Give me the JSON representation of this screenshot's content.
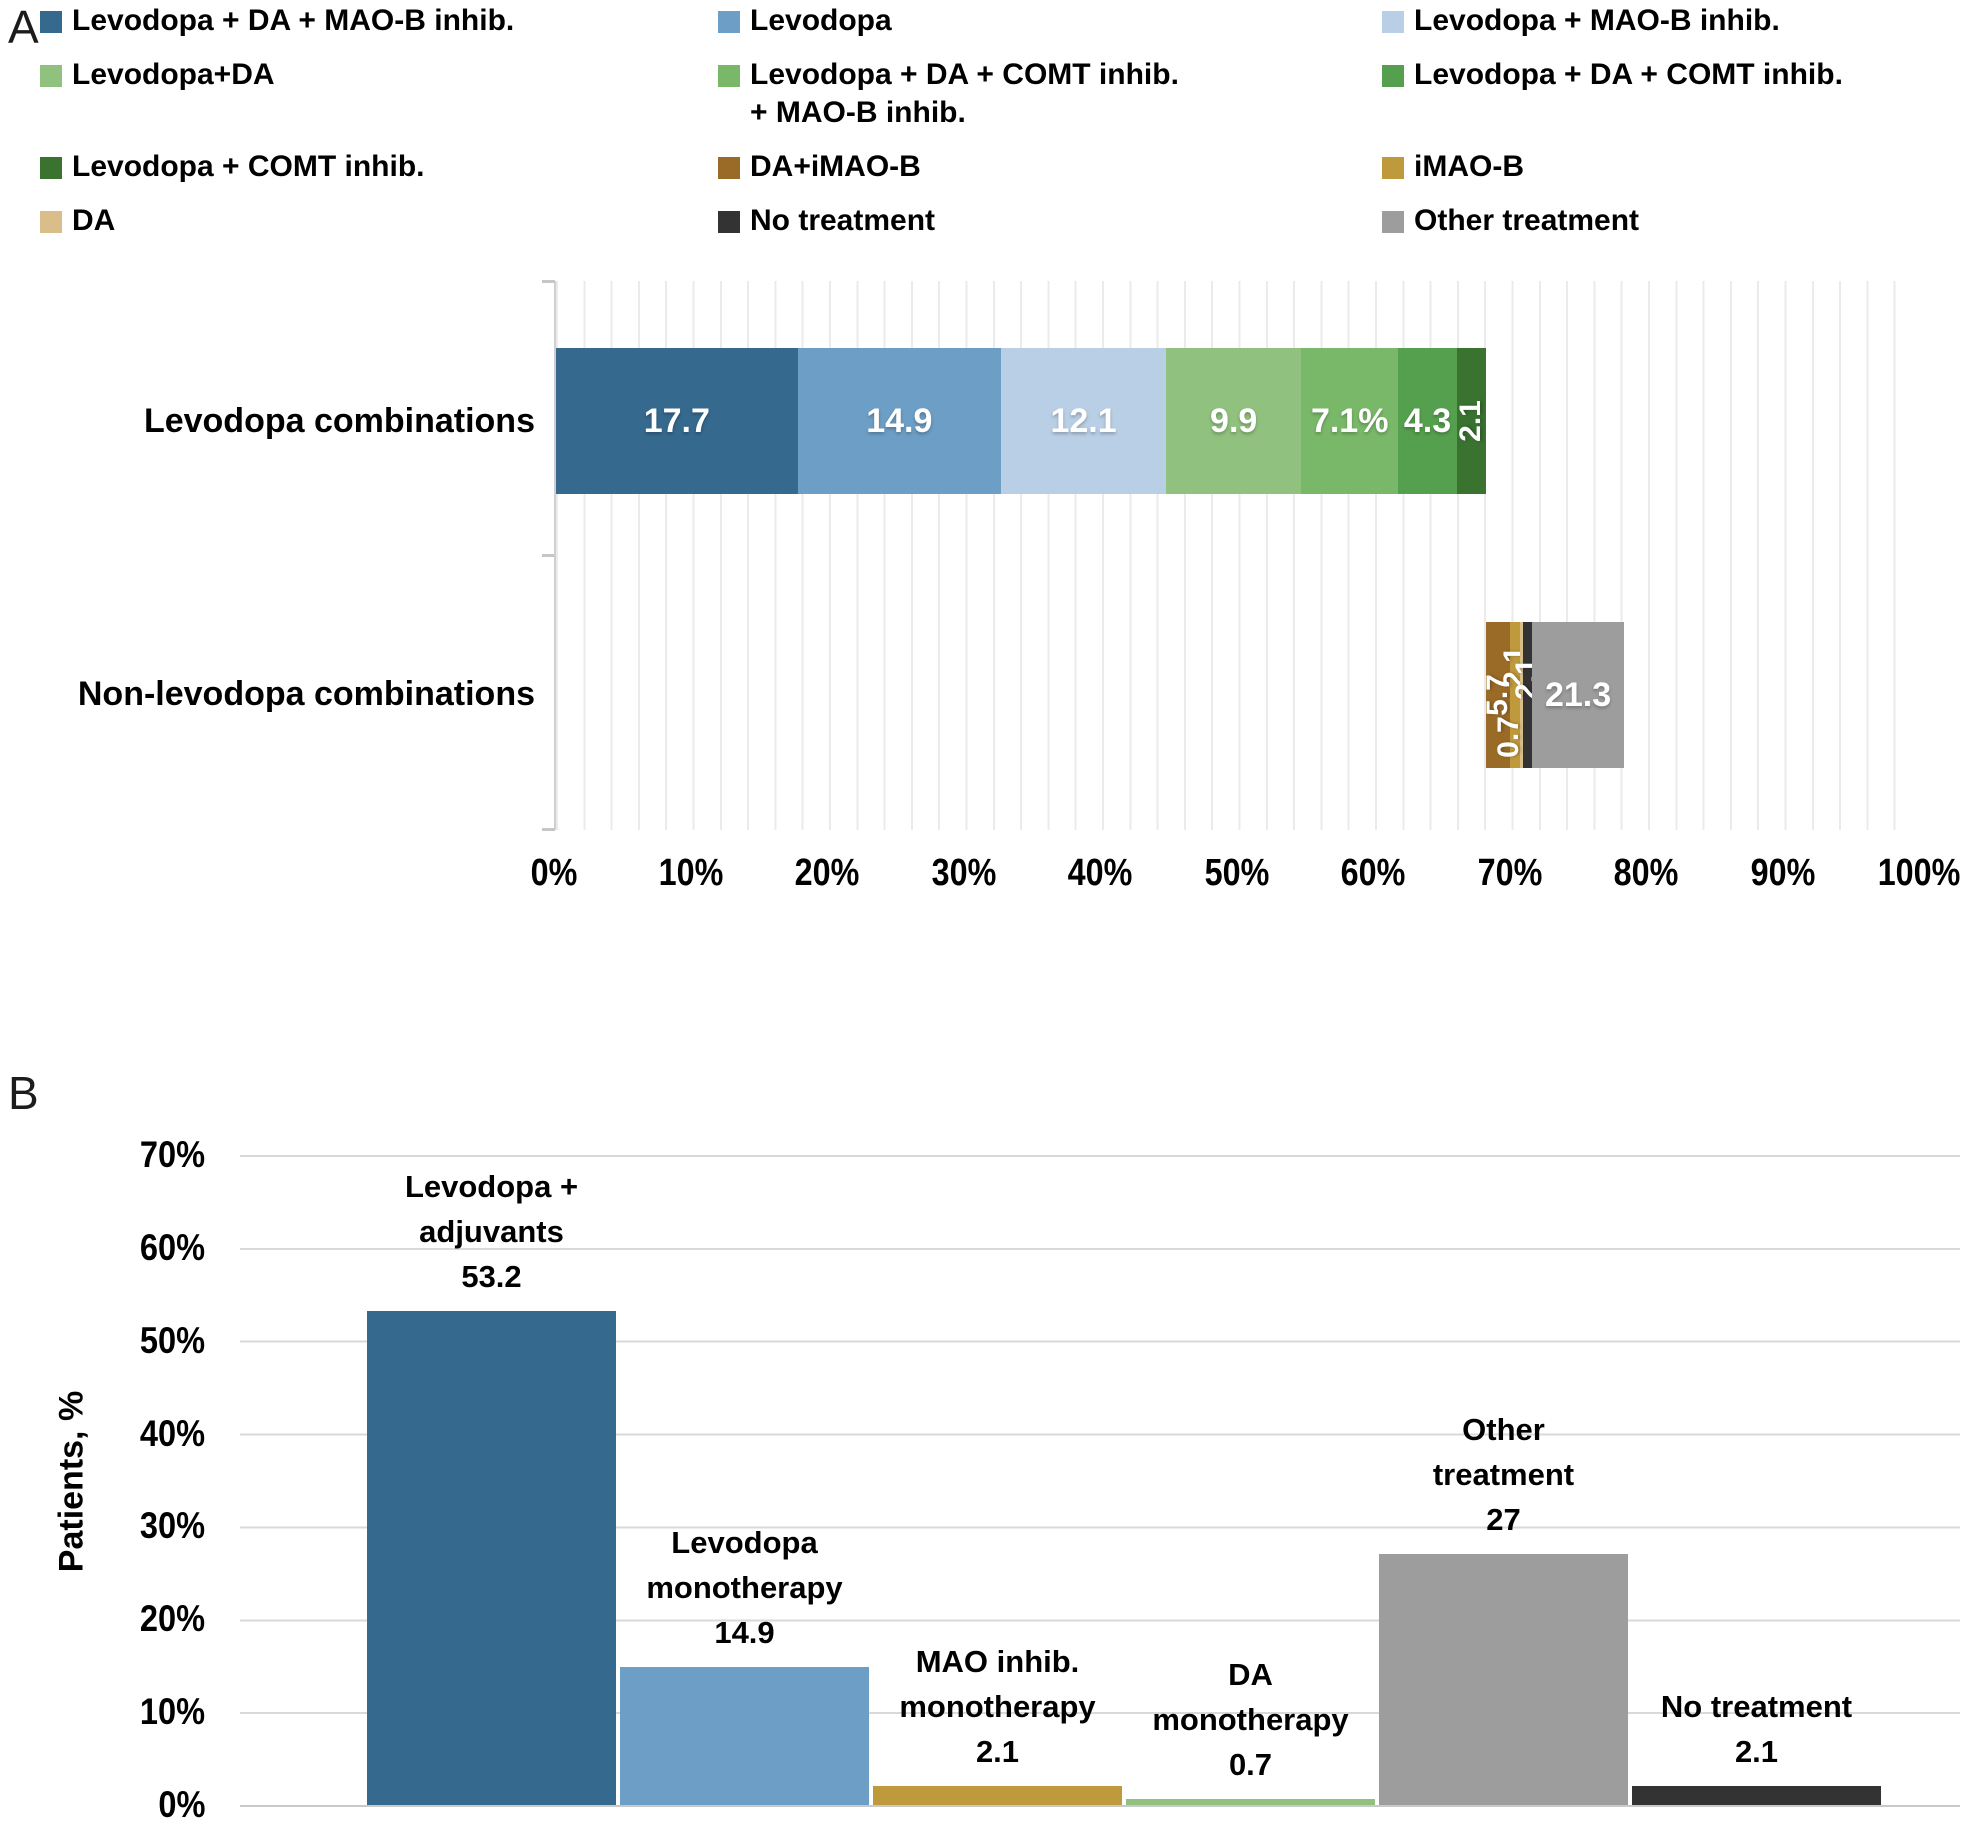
{
  "panel_a": {
    "letter": "A",
    "legend": [
      {
        "label": "Levodopa + DA + MAO-B inhib.",
        "color": "#35698E"
      },
      {
        "label": "Levodopa",
        "color": "#6D9EC5"
      },
      {
        "label": "Levodopa + MAO-B inhib.",
        "color": "#B9CFE5"
      },
      {
        "label": "Levodopa+DA",
        "color": "#90C17E"
      },
      {
        "label": "Levodopa + DA + COMT inhib.\n+ MAO-B inhib.",
        "color": "#7AB869"
      },
      {
        "label": "Levodopa + DA + COMT inhib.",
        "color": "#55A04E"
      },
      {
        "label": "Levodopa + COMT inhib.",
        "color": "#3A7230"
      },
      {
        "label": "DA+iMAO-B",
        "color": "#9A6B27"
      },
      {
        "label": "iMAO-B",
        "color": "#BF9A3D"
      },
      {
        "label": "DA",
        "color": "#D9BE8A"
      },
      {
        "label": "No treatment",
        "color": "#333333"
      },
      {
        "label": "Other treatment",
        "color": "#9D9D9D"
      }
    ]
  },
  "panel_b": {
    "letter": "B",
    "ylabel": "Patients, %"
  },
  "chart_data": [
    {
      "type": "bar",
      "orientation": "horizontal",
      "stacked": true,
      "legend_position": "top",
      "grid": "vertical minor gridlines every 2%",
      "xlim": [
        0,
        100
      ],
      "x_ticks": [
        "0%",
        "10%",
        "20%",
        "30%",
        "40%",
        "50%",
        "60%",
        "70%",
        "80%",
        "90%",
        "100%"
      ],
      "categories": [
        "Levodopa combinations",
        "Non-levodopa combinations"
      ],
      "rows": [
        {
          "category": "Levodopa combinations",
          "offset": 0,
          "segments": [
            {
              "series": "Levodopa + DA + MAO-B inhib.",
              "value": 17.7,
              "label": "17.7",
              "color": "#35698E",
              "rotated": false
            },
            {
              "series": "Levodopa",
              "value": 14.9,
              "label": "14.9",
              "color": "#6D9EC5",
              "rotated": false
            },
            {
              "series": "Levodopa + MAO-B inhib.",
              "value": 12.1,
              "label": "12.1",
              "color": "#B9CFE5",
              "rotated": false
            },
            {
              "series": "Levodopa+DA",
              "value": 9.9,
              "label": "9.9",
              "color": "#90C17E",
              "rotated": false
            },
            {
              "series": "Levodopa + DA + COMT inhib. + MAO-B inhib.",
              "value": 7.1,
              "label": "7.1%",
              "color": "#7AB869",
              "rotated": false
            },
            {
              "series": "Levodopa + DA + COMT inhib.",
              "value": 4.3,
              "label": "4.3",
              "color": "#55A04E",
              "rotated": false
            },
            {
              "series": "Levodopa + COMT inhib.",
              "value": 2.1,
              "label": "2.1",
              "color": "#3A7230",
              "rotated": true
            }
          ]
        },
        {
          "category": "Non-levodopa combinations",
          "offset": 68.1,
          "segments": [
            {
              "series": "DA+iMAO-B",
              "value": 5.7,
              "label": "5.7",
              "color": "#9A6B27",
              "rotated": true
            },
            {
              "series": "iMAO-B",
              "value": 2.1,
              "label": "2.1",
              "color": "#BF9A3D",
              "rotated": true
            },
            {
              "series": "DA",
              "value": 0.7,
              "label": "0.7",
              "color": "#D9BE8A",
              "rotated": true
            },
            {
              "series": "No treatment",
              "value": 2.1,
              "label": "2.1",
              "color": "#333333",
              "rotated": true
            },
            {
              "series": "Other treatment",
              "value": 21.3,
              "label": "21.3",
              "color": "#9D9D9D",
              "rotated": false
            }
          ]
        }
      ]
    },
    {
      "type": "bar",
      "orientation": "vertical",
      "ylabel": "Patients, %",
      "ylim": [
        0,
        70
      ],
      "y_ticks": [
        "70%",
        "60%",
        "50%",
        "40%",
        "30%",
        "20%",
        "10%",
        "0%"
      ],
      "grid": "horizontal gridlines every 10%",
      "bars": [
        {
          "label": "Levodopa +\nadjuvants",
          "value": 53.2,
          "value_label": "53.2",
          "color": "#35698E"
        },
        {
          "label": "Levodopa\nmonotherapy",
          "value": 14.9,
          "value_label": "14.9",
          "color": "#6D9EC5"
        },
        {
          "label": "MAO inhib.\nmonotherapy",
          "value": 2.1,
          "value_label": "2.1",
          "color": "#BF9A3D"
        },
        {
          "label": "DA\nmonotherapy",
          "value": 0.7,
          "value_label": "0.7",
          "color": "#90C17E"
        },
        {
          "label": "Other\ntreatment",
          "value": 27,
          "value_label": "27",
          "color": "#9D9D9D"
        },
        {
          "label": "No treatment",
          "value": 2.1,
          "value_label": "2.1",
          "color": "#333333"
        }
      ]
    }
  ]
}
